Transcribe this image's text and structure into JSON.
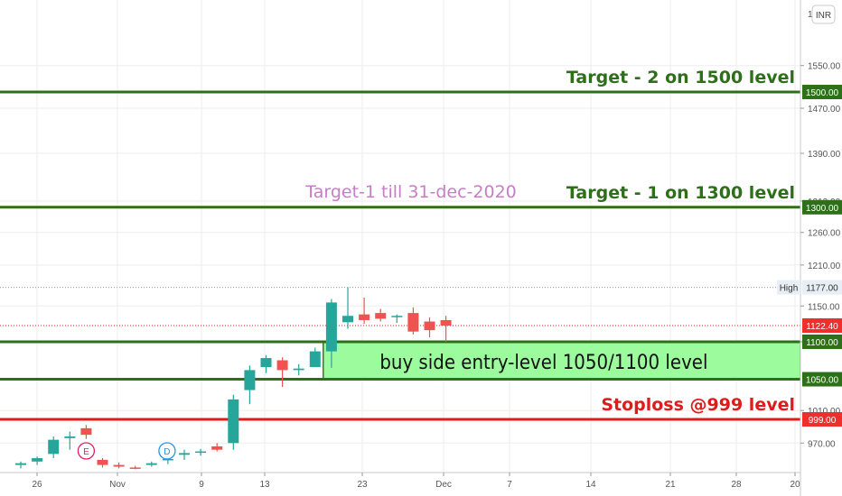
{
  "currency_badge": "INR",
  "colors": {
    "up": "#26a69a",
    "down": "#ef5350",
    "level_green": "#2e6f1a",
    "level_red": "#e01b1b",
    "zone_fill": "#9cfb9c",
    "annotation_purple": "#c77dc7",
    "grid": "#eeeeee"
  },
  "chart_data": {
    "type": "candlestick",
    "y_scale": "log",
    "ylim": [
      940,
      1910
    ],
    "y_ticks": [
      "970.00",
      "1010.00",
      "1100.00",
      "1150.00",
      "1210.00",
      "1260.00",
      "1310.00",
      "1390.00",
      "1470.00",
      "1550.00"
    ],
    "partial_top_tick": "1",
    "x_ticks": [
      "26",
      "Nov",
      "9",
      "13",
      "23",
      "Dec",
      "7",
      "14",
      "21",
      "28",
      "20"
    ],
    "price_tags": [
      {
        "label": "1500.00",
        "value": 1500,
        "style": "green"
      },
      {
        "label": "1300.00",
        "value": 1300,
        "style": "green"
      },
      {
        "label": "1122.40",
        "value": 1122.4,
        "style": "red"
      },
      {
        "label": "1100.00",
        "value": 1100,
        "style": "green"
      },
      {
        "label": "1050.00",
        "value": 1050,
        "style": "green"
      },
      {
        "label": "999.00",
        "value": 999,
        "style": "red"
      }
    ],
    "high_label": {
      "text": "High",
      "value": "1177.00"
    },
    "levels": [
      {
        "value": 1500,
        "label": "Target - 2 on 1500 level",
        "color": "green"
      },
      {
        "value": 1300,
        "label": "Target - 1 on 1300 level",
        "color": "green"
      },
      {
        "value": 1100,
        "label": "",
        "color": "green"
      },
      {
        "value": 1050,
        "label": "",
        "color": "green"
      },
      {
        "value": 999,
        "label": "Stoploss @999 level",
        "color": "red"
      }
    ],
    "zone": {
      "low": 1050,
      "high": 1100,
      "label": "buy side entry-level 1050/1100 level"
    },
    "annotation": {
      "text": "Target-1 till 31-dec-2020",
      "value": 1325
    },
    "markers": [
      {
        "text": "E",
        "type": "earnings",
        "candle": 4
      },
      {
        "text": "D",
        "type": "dividend",
        "candle": 9
      }
    ],
    "candles": [
      {
        "o": 944,
        "h": 948,
        "l": 940,
        "c": 946
      },
      {
        "o": 948,
        "h": 954,
        "l": 944,
        "c": 952
      },
      {
        "o": 957,
        "h": 978,
        "l": 952,
        "c": 974
      },
      {
        "o": 976,
        "h": 984,
        "l": 962,
        "c": 978
      },
      {
        "o": 988,
        "h": 992,
        "l": 975,
        "c": 980
      },
      {
        "o": 950,
        "h": 952,
        "l": 941,
        "c": 944
      },
      {
        "o": 944,
        "h": 947,
        "l": 940,
        "c": 942
      },
      {
        "o": 941,
        "h": 943,
        "l": 939,
        "c": 940
      },
      {
        "o": 944,
        "h": 948,
        "l": 942,
        "c": 946
      },
      {
        "o": 950,
        "h": 954,
        "l": 945,
        "c": 951
      },
      {
        "o": 956,
        "h": 962,
        "l": 950,
        "c": 958
      },
      {
        "o": 960,
        "h": 963,
        "l": 955,
        "c": 960
      },
      {
        "o": 966,
        "h": 970,
        "l": 960,
        "c": 962
      },
      {
        "o": 970,
        "h": 1030,
        "l": 962,
        "c": 1024
      },
      {
        "o": 1036,
        "h": 1068,
        "l": 1018,
        "c": 1062
      },
      {
        "o": 1066,
        "h": 1082,
        "l": 1058,
        "c": 1078
      },
      {
        "o": 1075,
        "h": 1079,
        "l": 1040,
        "c": 1062
      },
      {
        "o": 1062,
        "h": 1070,
        "l": 1055,
        "c": 1064
      },
      {
        "o": 1066,
        "h": 1092,
        "l": 1066,
        "c": 1087
      },
      {
        "o": 1087,
        "h": 1160,
        "l": 1065,
        "c": 1155
      },
      {
        "o": 1127,
        "h": 1177,
        "l": 1118,
        "c": 1136
      },
      {
        "o": 1138,
        "h": 1162,
        "l": 1125,
        "c": 1130
      },
      {
        "o": 1140,
        "h": 1146,
        "l": 1128,
        "c": 1132
      },
      {
        "o": 1136,
        "h": 1138,
        "l": 1126,
        "c": 1136
      },
      {
        "o": 1140,
        "h": 1148,
        "l": 1110,
        "c": 1114
      },
      {
        "o": 1128,
        "h": 1134,
        "l": 1106,
        "c": 1116
      },
      {
        "o": 1130,
        "h": 1136,
        "l": 1100,
        "c": 1122.4
      }
    ]
  }
}
